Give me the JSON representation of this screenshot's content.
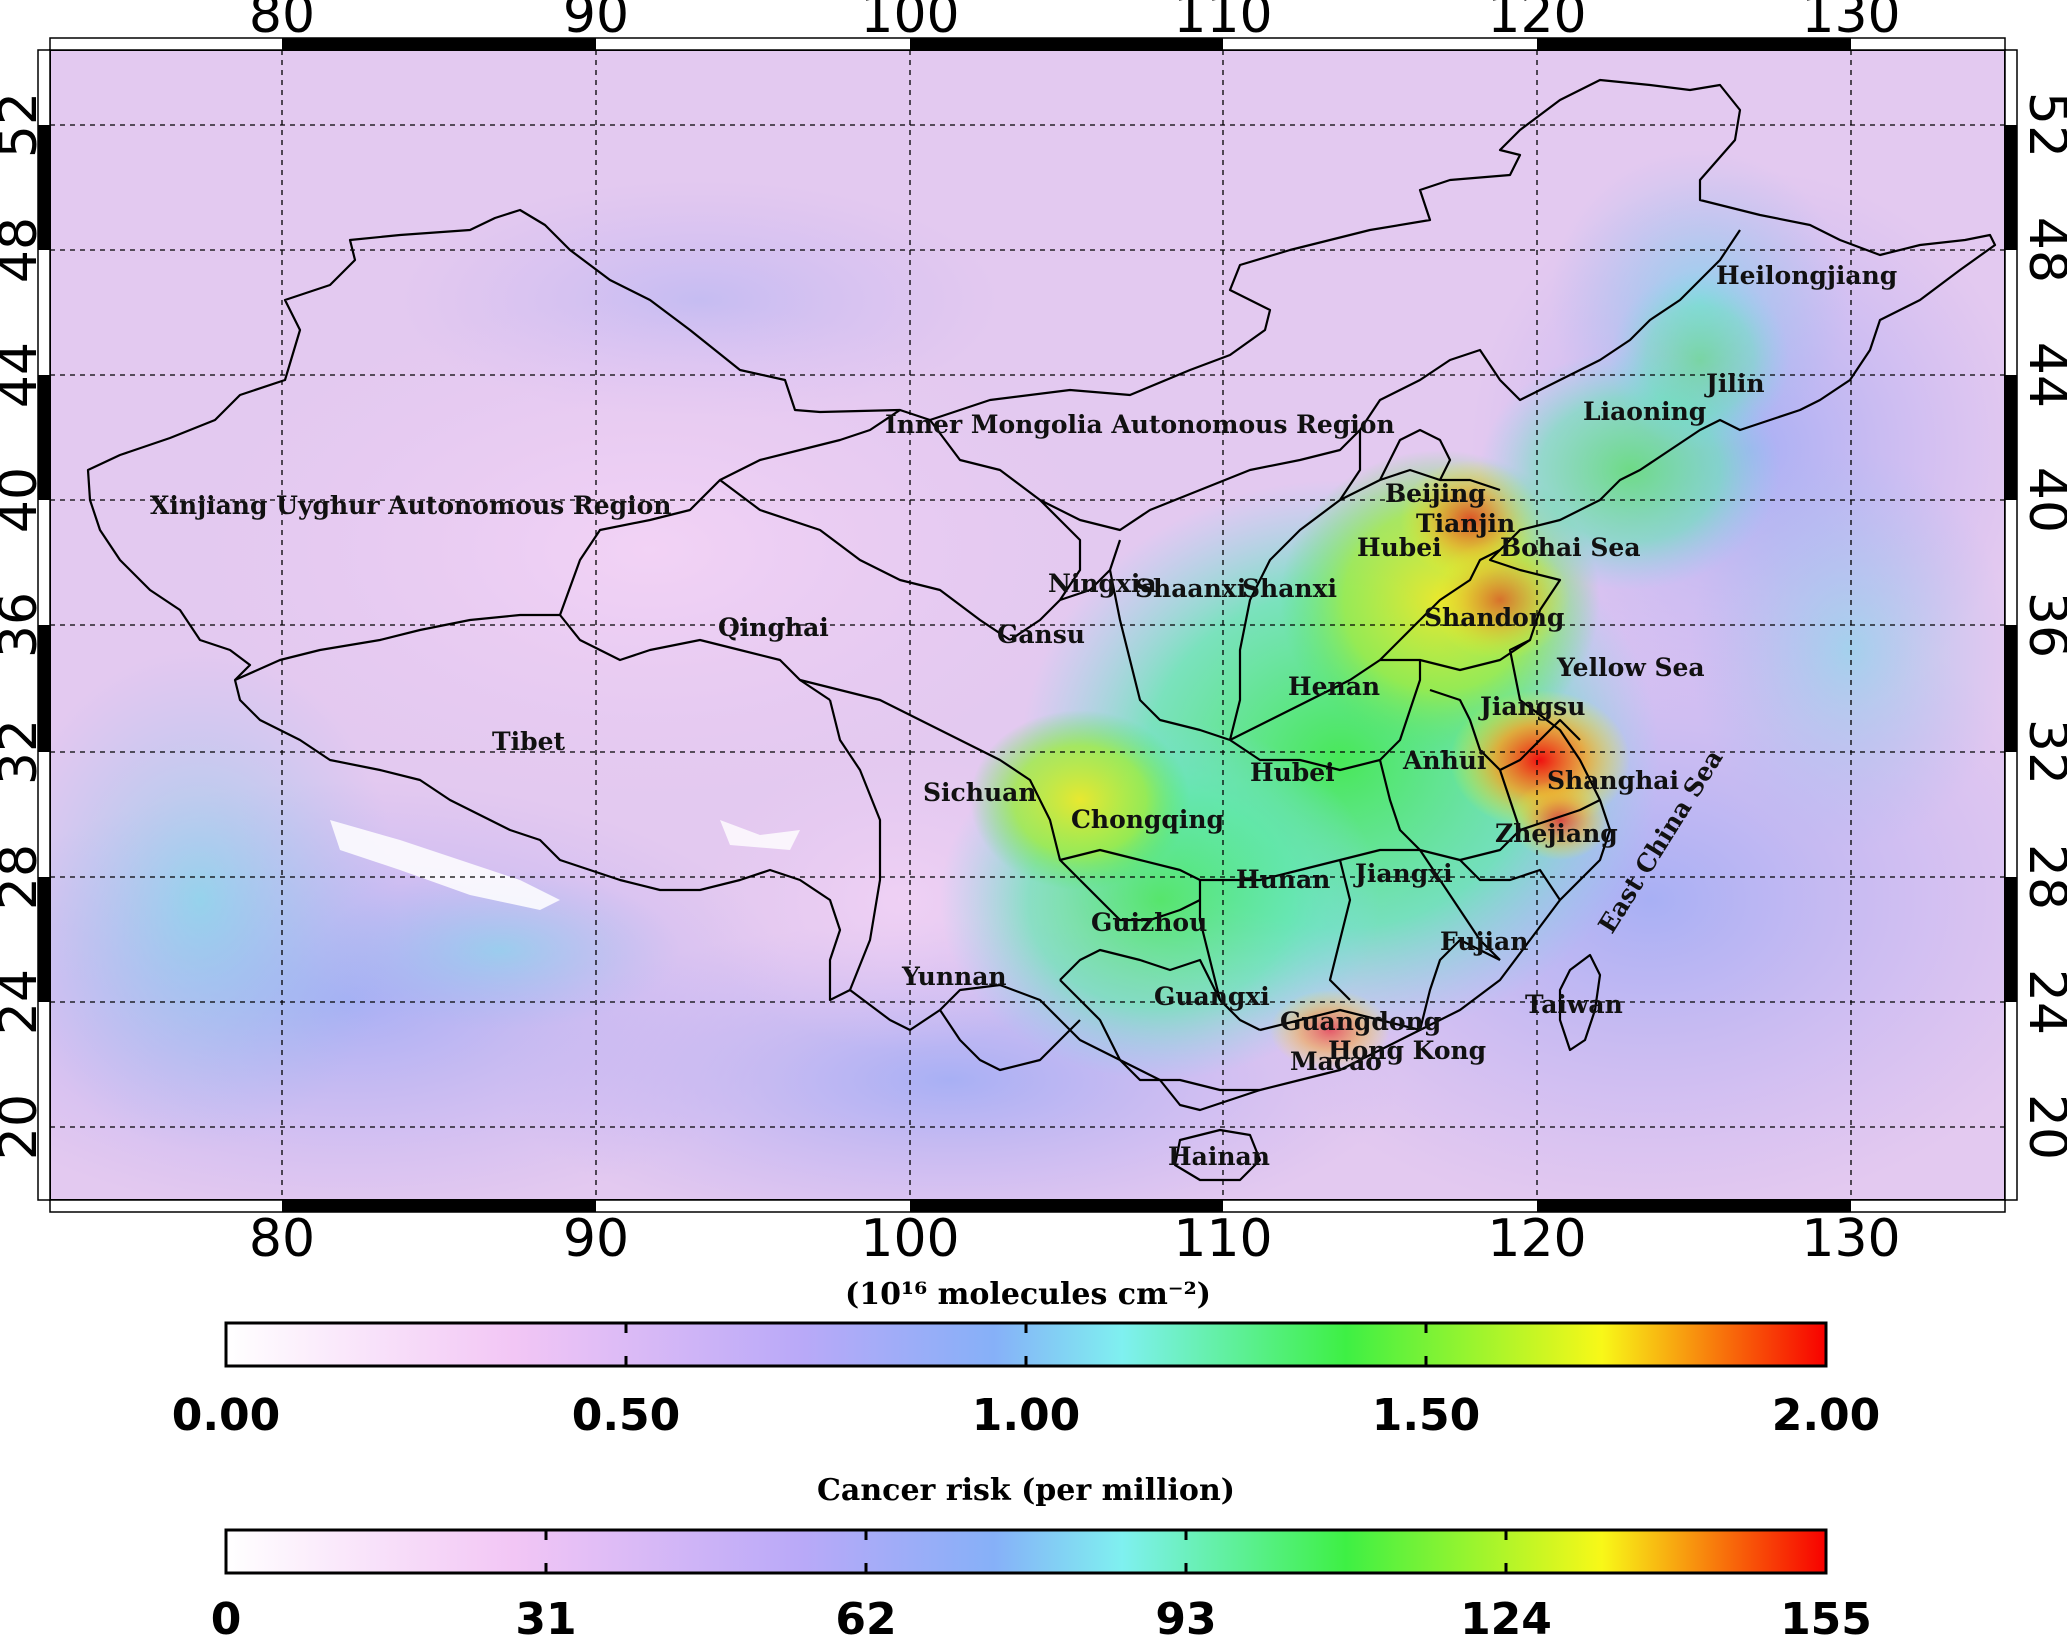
{
  "map": {
    "lon_ticks": [
      "80",
      "90",
      "100",
      "110",
      "120",
      "130"
    ],
    "lat_ticks": [
      "52",
      "48",
      "44",
      "40",
      "36",
      "32",
      "28",
      "24",
      "20"
    ],
    "regions": [
      "Xinjiang Uyghur Autonomous Region",
      "Inner Mongolia Autonomous Region",
      "Heilongjiang",
      "Jilin",
      "Liaoning",
      "Beijing",
      "Tianjin",
      "Hubei",
      "Bohai Sea",
      "Ningxia",
      "Shaanxi",
      "Shanxi",
      "Qinghai",
      "Gansu",
      "Shandong",
      "Yellow Sea",
      "Henan",
      "Jiangsu",
      "Tibet",
      "Anhui",
      "Hubei",
      "Shanghai",
      "Sichuan",
      "Chongqing",
      "Zhejiang",
      "East China Sea",
      "Hunan",
      "Jiangxi",
      "Guizhou",
      "Fujian",
      "Yunnan",
      "Guangxi",
      "Taiwan",
      "Guangdong",
      "Hong Kong",
      "Macao",
      "Hainan"
    ]
  },
  "colorbars": [
    {
      "title": "(10¹⁶ molecules cm⁻²)",
      "ticks": [
        "0.00",
        "0.50",
        "1.00",
        "1.50",
        "2.00"
      ]
    },
    {
      "title": "Cancer risk (per million)",
      "ticks": [
        "0",
        "31",
        "62",
        "93",
        "124",
        "155"
      ]
    }
  ],
  "colors": {
    "background_fill": "#e3c9f0",
    "scale": [
      "#ffffff",
      "#f2c6f5",
      "#b9a9f8",
      "#86b0f8",
      "#7ff0f0",
      "#3ef044",
      "#f8f818",
      "#f80000"
    ]
  }
}
